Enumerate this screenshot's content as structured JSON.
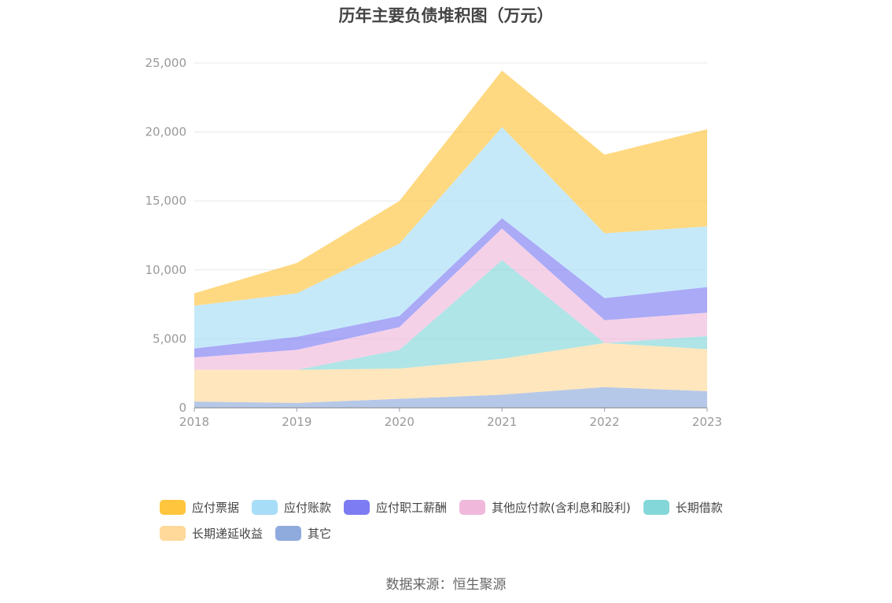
{
  "chart_data": {
    "type": "area",
    "stacked": true,
    "title": "历年主要负债堆积图（万元）",
    "x": [
      "2018",
      "2019",
      "2020",
      "2021",
      "2022",
      "2023"
    ],
    "yticks": [
      "0",
      "5,000",
      "10,000",
      "15,000",
      "20,000",
      "25,000"
    ],
    "ylim": [
      0,
      25000
    ],
    "grid": true,
    "legend_position": "bottom",
    "series": [
      {
        "name": "其它",
        "color": "#8faadc",
        "values": [
          450,
          350,
          650,
          950,
          1500,
          1200
        ]
      },
      {
        "name": "长期递延收益",
        "color": "#ffd99a",
        "values": [
          2300,
          2400,
          2200,
          2600,
          3200,
          3050
        ]
      },
      {
        "name": "长期借款",
        "color": "#84d7d8",
        "values": [
          0,
          0,
          1350,
          7150,
          0,
          950
        ]
      },
      {
        "name": "其他应付款(含利息和股利)",
        "color": "#f0b8db",
        "values": [
          900,
          1450,
          1650,
          2300,
          1650,
          1700
        ]
      },
      {
        "name": "应付职工薪酬",
        "color": "#7d7cf2",
        "values": [
          650,
          950,
          800,
          750,
          1600,
          1850
        ]
      },
      {
        "name": "应付账款",
        "color": "#a8ddf8",
        "values": [
          3100,
          3150,
          5250,
          6600,
          4700,
          4400
        ]
      },
      {
        "name": "应付票据",
        "color": "#ffc53d",
        "values": [
          900,
          2200,
          3100,
          4100,
          5700,
          7050
        ]
      }
    ],
    "source": "数据来源：恒生聚源"
  }
}
